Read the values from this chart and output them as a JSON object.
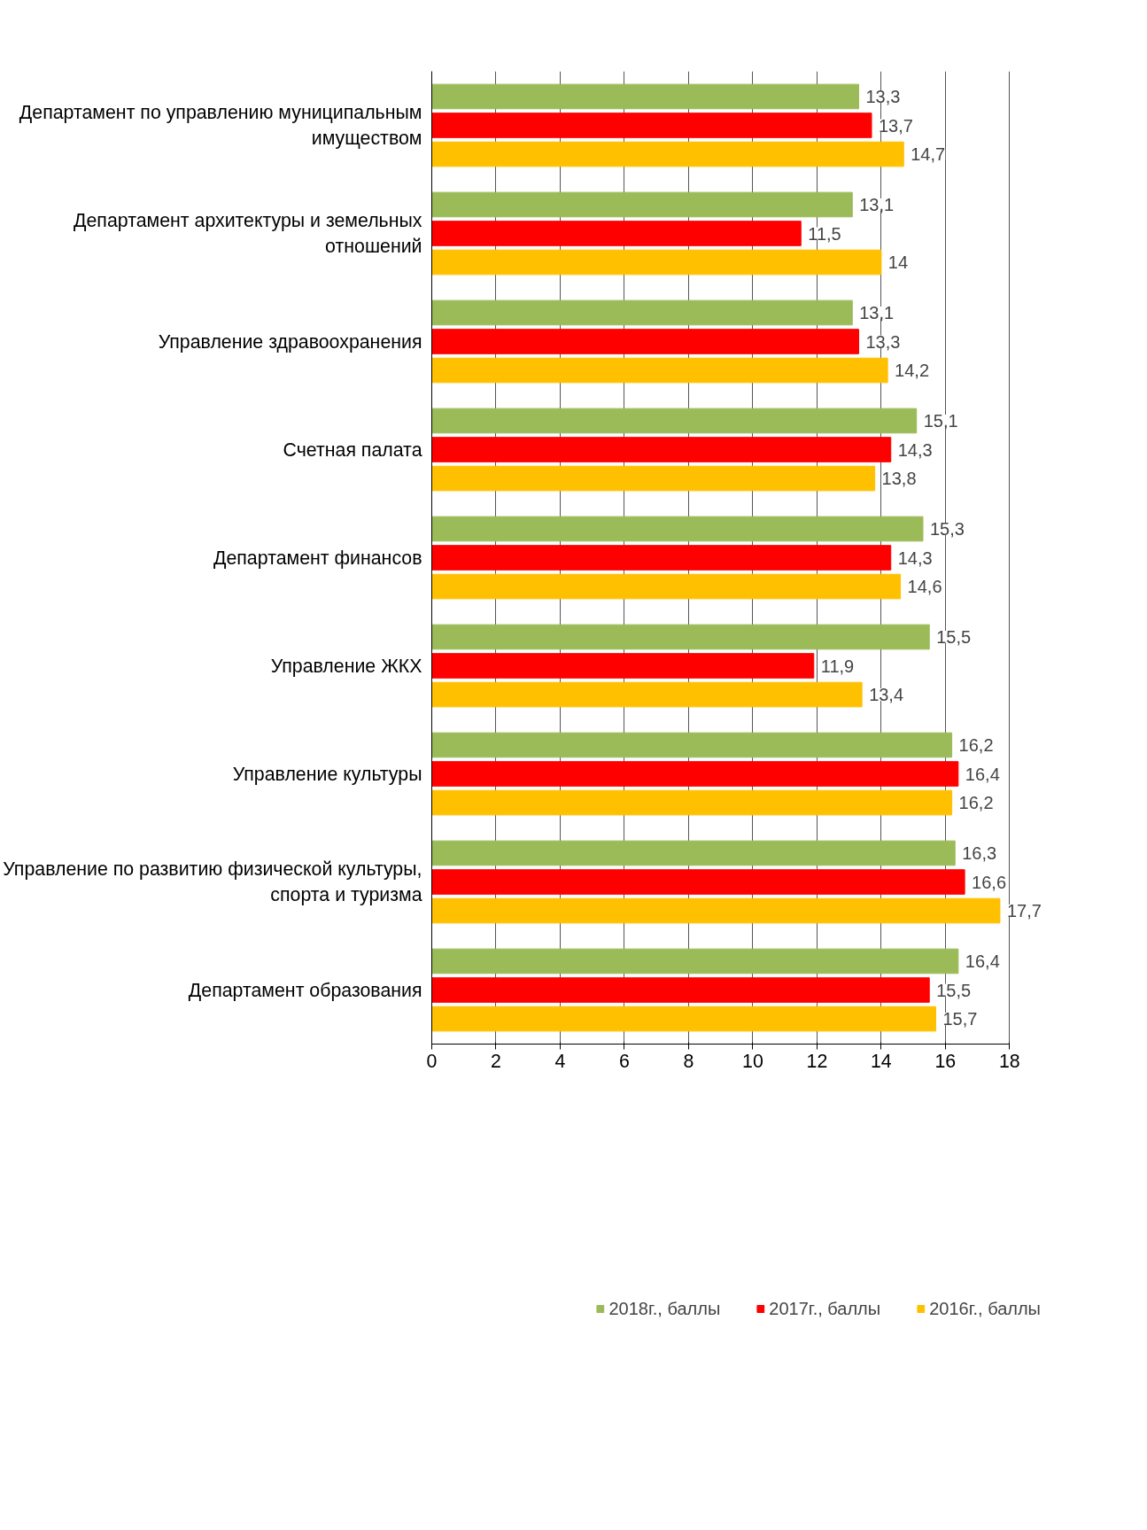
{
  "chart_data": {
    "type": "bar",
    "orientation": "horizontal",
    "categories": [
      "Департамент по управлению муниципальным имуществом",
      "Департамент архитектуры и земельных отношений",
      "Управление здравоохранения",
      "Счетная палата",
      "Департамент финансов",
      "Управление ЖКХ",
      "Управление культуры",
      "Управление по развитию физической культуры, спорта и туризма",
      "Департамент образования"
    ],
    "series": [
      {
        "name": "2018г., баллы",
        "color": "#9bbb59",
        "values": [
          13.3,
          13.1,
          13.1,
          15.1,
          15.3,
          15.5,
          16.2,
          16.3,
          16.4
        ],
        "value_labels": [
          "13,3",
          "13,1",
          "13,1",
          "15,1",
          "15,3",
          "15,5",
          "16,2",
          "16,3",
          "16,4"
        ]
      },
      {
        "name": "2017г., баллы",
        "color": "#ff0000",
        "values": [
          13.7,
          11.5,
          13.3,
          14.3,
          14.3,
          11.9,
          16.4,
          16.6,
          15.5
        ],
        "value_labels": [
          "13,7",
          "11,5",
          "13,3",
          "14,3",
          "14,3",
          "11,9",
          "16,4",
          "16,6",
          "15,5"
        ]
      },
      {
        "name": "2016г., баллы",
        "color": "#ffc000",
        "values": [
          14.7,
          14,
          14.2,
          13.8,
          14.6,
          13.4,
          16.2,
          17.7,
          15.7
        ],
        "value_labels": [
          "14,7",
          "14",
          "14,2",
          "13,8",
          "14,6",
          "13,4",
          "16,2",
          "17,7",
          "15,7"
        ]
      }
    ],
    "xlim": [
      0,
      18
    ],
    "xticks": [
      0,
      2,
      4,
      6,
      8,
      10,
      12,
      14,
      16,
      18
    ],
    "grid": "x",
    "legend": "bottom"
  }
}
